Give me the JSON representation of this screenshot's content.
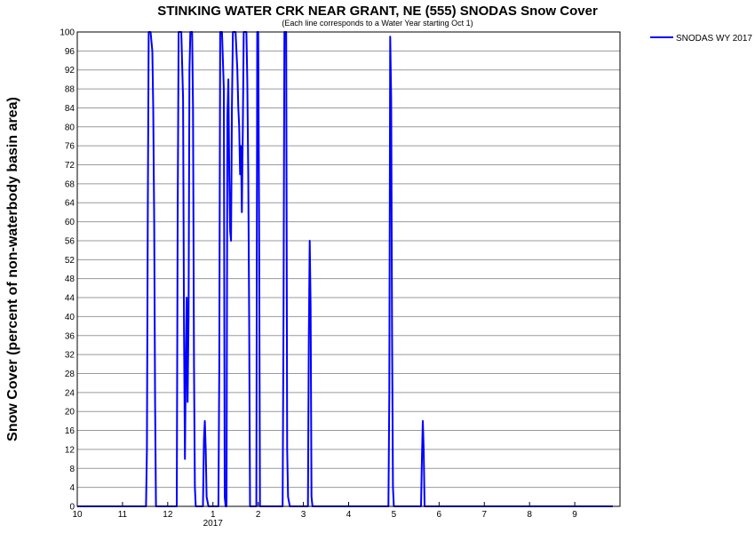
{
  "chart_data": {
    "type": "line",
    "title": "STINKING WATER CRK NEAR GRANT, NE (555) SNODAS Snow Cover",
    "subtitle": "(Each line corresponds to a Water Year starting Oct 1)",
    "ylabel": "Snow Cover (percent of non-waterbody basin area)",
    "xlabel": "",
    "ylim": [
      0,
      100
    ],
    "yticks": [
      0,
      4,
      8,
      12,
      16,
      20,
      24,
      28,
      32,
      36,
      40,
      44,
      48,
      52,
      56,
      60,
      64,
      68,
      72,
      76,
      80,
      84,
      88,
      92,
      96,
      100
    ],
    "xlim": [
      0,
      12
    ],
    "xticks": [
      {
        "pos": 0,
        "label": "10"
      },
      {
        "pos": 1,
        "label": "11"
      },
      {
        "pos": 2,
        "label": "12"
      },
      {
        "pos": 3,
        "label": "1"
      },
      {
        "pos": 4,
        "label": "2"
      },
      {
        "pos": 5,
        "label": "3"
      },
      {
        "pos": 6,
        "label": "4"
      },
      {
        "pos": 7,
        "label": "5"
      },
      {
        "pos": 8,
        "label": "6"
      },
      {
        "pos": 9,
        "label": "7"
      },
      {
        "pos": 10,
        "label": "8"
      },
      {
        "pos": 11,
        "label": "9"
      }
    ],
    "year_label": {
      "pos": 3,
      "label": "2017"
    },
    "grid": true,
    "legend_position": "top-right",
    "series": [
      {
        "name": "SNODAS WY 2017",
        "color": "#0000ff",
        "points": [
          [
            0,
            0
          ],
          [
            1.52,
            0
          ],
          [
            1.54,
            12
          ],
          [
            1.56,
            62
          ],
          [
            1.58,
            100
          ],
          [
            1.62,
            100
          ],
          [
            1.66,
            96
          ],
          [
            1.68,
            84
          ],
          [
            1.7,
            60
          ],
          [
            1.72,
            22
          ],
          [
            1.74,
            0
          ],
          [
            2.2,
            0
          ],
          [
            2.22,
            60
          ],
          [
            2.24,
            100
          ],
          [
            2.3,
            100
          ],
          [
            2.34,
            86
          ],
          [
            2.36,
            36
          ],
          [
            2.38,
            10
          ],
          [
            2.4,
            30
          ],
          [
            2.42,
            44
          ],
          [
            2.44,
            22
          ],
          [
            2.46,
            40
          ],
          [
            2.48,
            92
          ],
          [
            2.5,
            100
          ],
          [
            2.54,
            100
          ],
          [
            2.56,
            84
          ],
          [
            2.58,
            30
          ],
          [
            2.6,
            4
          ],
          [
            2.62,
            0
          ],
          [
            2.78,
            0
          ],
          [
            2.8,
            14
          ],
          [
            2.82,
            18
          ],
          [
            2.84,
            12
          ],
          [
            2.86,
            2
          ],
          [
            2.9,
            0
          ],
          [
            3.12,
            0
          ],
          [
            3.14,
            30
          ],
          [
            3.16,
            100
          ],
          [
            3.2,
            100
          ],
          [
            3.24,
            88
          ],
          [
            3.26,
            2
          ],
          [
            3.28,
            0
          ],
          [
            3.3,
            0
          ],
          [
            3.32,
            82
          ],
          [
            3.34,
            90
          ],
          [
            3.36,
            70
          ],
          [
            3.38,
            58
          ],
          [
            3.4,
            56
          ],
          [
            3.42,
            84
          ],
          [
            3.44,
            100
          ],
          [
            3.5,
            100
          ],
          [
            3.54,
            92
          ],
          [
            3.56,
            84
          ],
          [
            3.58,
            80
          ],
          [
            3.6,
            70
          ],
          [
            3.62,
            76
          ],
          [
            3.64,
            62
          ],
          [
            3.66,
            80
          ],
          [
            3.68,
            100
          ],
          [
            3.74,
            100
          ],
          [
            3.76,
            90
          ],
          [
            3.78,
            70
          ],
          [
            3.8,
            40
          ],
          [
            3.82,
            0
          ],
          [
            3.96,
            0
          ],
          [
            3.98,
            100
          ],
          [
            4.0,
            100
          ],
          [
            4.02,
            60
          ],
          [
            4.04,
            0
          ],
          [
            4.54,
            0
          ],
          [
            4.56,
            40
          ],
          [
            4.58,
            100
          ],
          [
            4.62,
            100
          ],
          [
            4.64,
            12
          ],
          [
            4.66,
            2
          ],
          [
            4.7,
            0
          ],
          [
            5.1,
            0
          ],
          [
            5.12,
            36
          ],
          [
            5.14,
            56
          ],
          [
            5.16,
            42
          ],
          [
            5.18,
            2
          ],
          [
            5.2,
            0
          ],
          [
            6.88,
            0
          ],
          [
            6.9,
            24
          ],
          [
            6.92,
            99
          ],
          [
            6.94,
            86
          ],
          [
            6.96,
            36
          ],
          [
            6.98,
            4
          ],
          [
            7.0,
            0
          ],
          [
            7.6,
            0
          ],
          [
            7.62,
            10
          ],
          [
            7.64,
            18
          ],
          [
            7.66,
            12
          ],
          [
            7.68,
            0
          ],
          [
            11.84,
            0
          ]
        ]
      }
    ]
  }
}
